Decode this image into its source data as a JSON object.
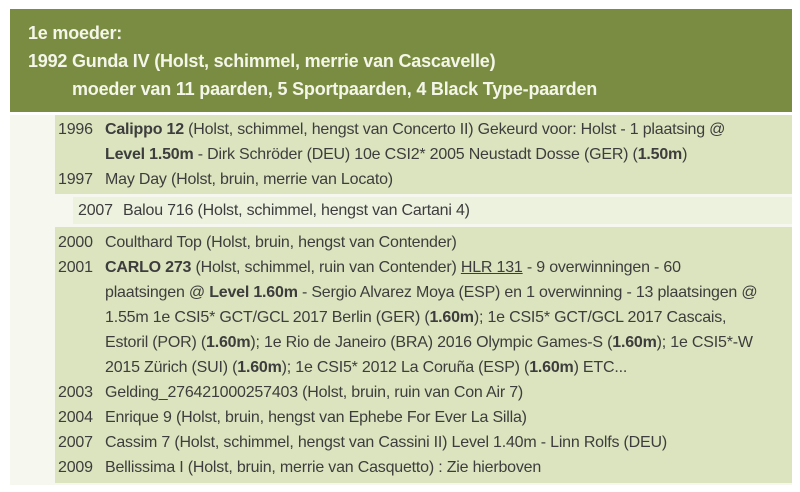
{
  "colors": {
    "header-bg": "#7a8c42",
    "header-text": "#f3f6e8",
    "row-bg": "#dbe4be",
    "row-bg-light": "#edf2df",
    "section-bg": "#f6f8ef",
    "body-text": "#3d3d3d"
  },
  "header": {
    "title": "1e moeder:",
    "dam_year": "1992",
    "dam_name": "Gunda IV (Holst, schimmel, merrie van Cascavelle)",
    "dam_summary": "moeder van 11 paarden, 5 Sportpaarden, 4 Black Type-paarden"
  },
  "offspring_blocks": [
    {
      "style": "normal",
      "rows": [
        {
          "year": "1996",
          "lines": [
            [
              {
                "t": "Calippo 12",
                "b": 1
              },
              {
                "t": " (Holst, schimmel, hengst van Concerto II) Gekeurd voor: Holst - 1 plaatsing @"
              }
            ],
            [
              {
                "t": "Level 1.50m",
                "b": 1
              },
              {
                "t": " - Dirk Schröder (DEU) 10e CSI2* 2005 Neustadt Dosse (GER) ("
              },
              {
                "t": "1.50m",
                "b": 1
              },
              {
                "t": ")"
              }
            ]
          ]
        },
        {
          "year": "1997",
          "lines": [
            [
              {
                "t": "May Day (Holst, bruin, merrie van Locato)"
              }
            ]
          ]
        }
      ]
    },
    {
      "style": "light",
      "rows": [
        {
          "year": "2007",
          "lines": [
            [
              {
                "t": "Balou 716 (Holst, schimmel, hengst van Cartani 4)"
              }
            ]
          ]
        }
      ]
    },
    {
      "style": "normal",
      "rows": [
        {
          "year": "2000",
          "lines": [
            [
              {
                "t": "Coulthard Top (Holst, bruin, hengst van Contender)"
              }
            ]
          ]
        },
        {
          "year": "2001",
          "lines": [
            [
              {
                "t": "CARLO 273",
                "b": 1
              },
              {
                "t": " (Holst, schimmel, ruin van Contender) "
              },
              {
                "t": "HLR 131",
                "u": 1
              },
              {
                "t": " - 9 overwinningen - 60"
              }
            ],
            [
              {
                "t": "plaatsingen @ "
              },
              {
                "t": "Level 1.60m",
                "b": 1
              },
              {
                "t": " - Sergio Alvarez Moya (ESP) en 1 overwinning - 13 plaatsingen @"
              }
            ],
            [
              {
                "t": "1.55m 1e CSI5* GCT/GCL 2017 Berlin (GER) ("
              },
              {
                "t": "1.60m",
                "b": 1
              },
              {
                "t": "); 1e CSI5* GCT/GCL 2017 Cascais,"
              }
            ],
            [
              {
                "t": "Estoril (POR) ("
              },
              {
                "t": "1.60m",
                "b": 1
              },
              {
                "t": "); 1e Rio de Janeiro (BRA) 2016 Olympic Games-S ("
              },
              {
                "t": "1.60m",
                "b": 1
              },
              {
                "t": "); 1e CSI5*-W"
              }
            ],
            [
              {
                "t": "2015 Zürich (SUI) ("
              },
              {
                "t": "1.60m",
                "b": 1
              },
              {
                "t": "); 1e CSI5* 2012 La Coruña (ESP) ("
              },
              {
                "t": "1.60m",
                "b": 1
              },
              {
                "t": ") ETC..."
              }
            ]
          ]
        },
        {
          "year": "2003",
          "lines": [
            [
              {
                "t": "Gelding_276421000257403 (Holst, bruin, ruin van Con Air 7)"
              }
            ]
          ]
        },
        {
          "year": "2004",
          "lines": [
            [
              {
                "t": "Enrique 9 (Holst, bruin, hengst van Ephebe For Ever La Silla)"
              }
            ]
          ]
        },
        {
          "year": "2007",
          "lines": [
            [
              {
                "t": "Cassim 7 (Holst, schimmel, hengst van Cassini II) Level 1.40m - Linn Rolfs (DEU)"
              }
            ]
          ]
        },
        {
          "year": "2009",
          "lines": [
            [
              {
                "t": "Bellissima I (Holst, bruin, merrie van Casquetto) : Zie hierboven"
              }
            ]
          ]
        }
      ]
    }
  ]
}
